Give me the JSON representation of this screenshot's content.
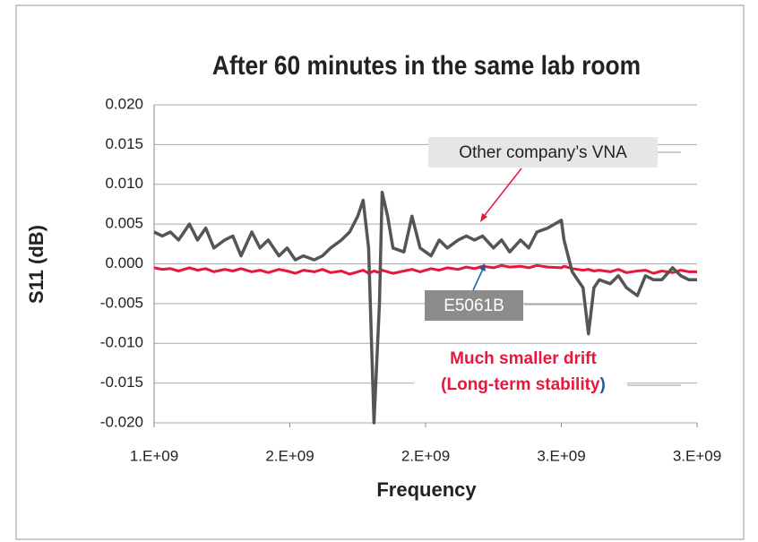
{
  "chart_data": {
    "type": "line",
    "title": "After 60 minutes in the same lab room",
    "x_label": "Frequency",
    "y_label": "S11 (dB)",
    "x": [
      1000000000.0,
      1030000000.0,
      1060000000.0,
      1090000000.0,
      1130000000.0,
      1160000000.0,
      1190000000.0,
      1220000000.0,
      1260000000.0,
      1290000000.0,
      1320000000.0,
      1360000000.0,
      1390000000.0,
      1420000000.0,
      1460000000.0,
      1490000000.0,
      1520000000.0,
      1550000000.0,
      1590000000.0,
      1620000000.0,
      1650000000.0,
      1690000000.0,
      1720000000.0,
      1750000000.0,
      1770000000.0,
      1790000000.0,
      1810000000.0,
      1830000000.0,
      1840000000.0,
      1860000000.0,
      1880000000.0,
      1920000000.0,
      1950000000.0,
      1980000000.0,
      2020000000.0,
      2050000000.0,
      2080000000.0,
      2120000000.0,
      2150000000.0,
      2180000000.0,
      2210000000.0,
      2250000000.0,
      2280000000.0,
      2310000000.0,
      2350000000.0,
      2380000000.0,
      2410000000.0,
      2450000000.0,
      2500000000.0,
      2510000000.0,
      2540000000.0,
      2580000000.0,
      2600000000.0,
      2620000000.0,
      2640000000.0,
      2680000000.0,
      2710000000.0,
      2740000000.0,
      2780000000.0,
      2810000000.0,
      2840000000.0,
      2870000000.0,
      2910000000.0,
      2940000000.0,
      2970000000.0,
      3000000000.0
    ],
    "series": [
      {
        "name": "Other company’s VNA",
        "color": "#555555",
        "values": [
          0.004,
          0.0035,
          0.004,
          0.003,
          0.005,
          0.003,
          0.0045,
          0.002,
          0.003,
          0.0035,
          0.001,
          0.004,
          0.002,
          0.003,
          0.001,
          0.002,
          0.0005,
          0.001,
          0.0005,
          0.001,
          0.002,
          0.003,
          0.004,
          0.006,
          0.008,
          0.002,
          -0.02,
          -0.005,
          0.009,
          0.006,
          0.002,
          0.0015,
          0.006,
          0.002,
          0.001,
          0.003,
          0.002,
          0.003,
          0.0035,
          0.003,
          0.0035,
          0.002,
          0.003,
          0.0015,
          0.003,
          0.002,
          0.004,
          0.0045,
          0.0055,
          0.003,
          -0.001,
          -0.003,
          -0.0088,
          -0.003,
          -0.002,
          -0.0025,
          -0.0015,
          -0.003,
          -0.004,
          -0.0015,
          -0.002,
          -0.002,
          -0.0005,
          -0.0015,
          -0.002,
          -0.002
        ]
      },
      {
        "name": "E5061B",
        "color": "#e8173c",
        "values": [
          -0.0005,
          -0.0007,
          -0.0006,
          -0.0009,
          -0.0005,
          -0.0008,
          -0.0006,
          -0.001,
          -0.0007,
          -0.0009,
          -0.0006,
          -0.001,
          -0.0008,
          -0.0011,
          -0.0007,
          -0.0009,
          -0.0012,
          -0.0008,
          -0.001,
          -0.0007,
          -0.0011,
          -0.0009,
          -0.0013,
          -0.001,
          -0.0008,
          -0.0012,
          -0.0009,
          -0.0011,
          -0.0008,
          -0.001,
          -0.0012,
          -0.0009,
          -0.0007,
          -0.001,
          -0.0006,
          -0.0008,
          -0.0005,
          -0.0007,
          -0.0004,
          -0.0006,
          -0.0003,
          -0.0005,
          -0.0002,
          -0.0004,
          -0.0003,
          -0.0005,
          -0.0002,
          -0.0004,
          -0.0005,
          -0.0003,
          -0.0006,
          -0.0008,
          -0.0007,
          -0.0009,
          -0.0008,
          -0.001,
          -0.0007,
          -0.0011,
          -0.0009,
          -0.0008,
          -0.0012,
          -0.0009,
          -0.0011,
          -0.0008,
          -0.001,
          -0.001
        ]
      }
    ],
    "annotations": [
      "Much smaller drift",
      "(Long-term stability",
      ")"
    ],
    "xlim": [
      1000000000.0,
      3000000000.0
    ],
    "xticks": [
      {
        "value": 1000000000.0,
        "label": "1.E+09"
      },
      {
        "value": 1500000000.0,
        "label": "2.E+09"
      },
      {
        "value": 2000000000.0,
        "label": "2.E+09"
      },
      {
        "value": 2500000000.0,
        "label": "3.E+09"
      },
      {
        "value": 3000000000.0,
        "label": "3.E+09"
      }
    ],
    "ylim": [
      -0.02,
      0.02
    ],
    "yticks": [
      {
        "value": 0.02,
        "label": "0.020"
      },
      {
        "value": 0.015,
        "label": "0.015"
      },
      {
        "value": 0.01,
        "label": "0.010"
      },
      {
        "value": 0.005,
        "label": "0.005"
      },
      {
        "value": 0,
        "label": "0.000"
      },
      {
        "value": -0.005,
        "label": "-0.005"
      },
      {
        "value": -0.01,
        "label": "-0.010"
      },
      {
        "value": -0.015,
        "label": "-0.015"
      },
      {
        "value": -0.02,
        "label": "-0.020"
      }
    ],
    "grid": true
  }
}
